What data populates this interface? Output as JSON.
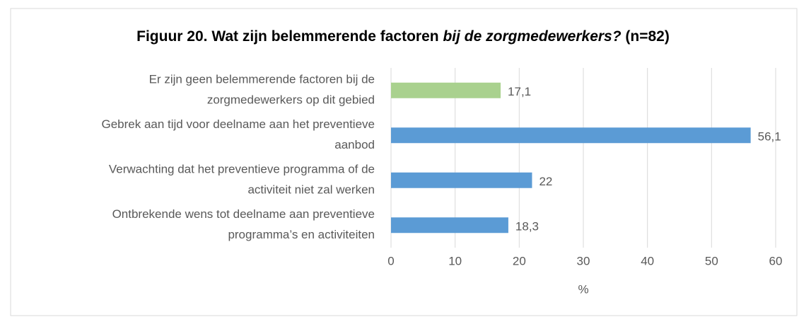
{
  "chart_data": {
    "type": "barh",
    "title": [
      "Figuur 20. Wat zijn belemmerende factoren",
      "bij de zorgmedewerkers?",
      "(n=82)"
    ],
    "categories": [
      [
        "Er zijn geen belemmerende factoren bij de",
        "zorgmedewerkers op dit gebied"
      ],
      [
        "Gebrek aan tijd voor deelname aan het preventieve",
        "aanbod"
      ],
      [
        "Verwachting dat het preventieve programma of de",
        "activiteit niet zal werken"
      ],
      [
        "Ontbrekende wens tot deelname aan preventieve",
        "programma’s en activiteiten"
      ]
    ],
    "values": [
      17.1,
      56.1,
      22,
      18.3
    ],
    "value_labels": [
      "17,1",
      "56,1",
      "22",
      "18,3"
    ],
    "colors": [
      "#a9d18e",
      "#5b9bd5",
      "#5b9bd5",
      "#5b9bd5"
    ],
    "xlim": [
      0,
      60
    ],
    "xticks": [
      0,
      10,
      20,
      30,
      40,
      50,
      60
    ],
    "xlabel": "%",
    "grid": true
  }
}
